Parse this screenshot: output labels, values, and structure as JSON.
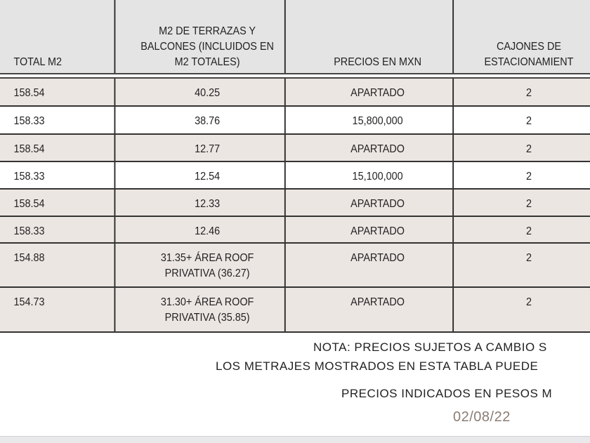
{
  "table": {
    "headers": [
      "TOTAL M2",
      "M2 DE TERRAZAS Y BALCONES (INCLUIDOS EN M2 TOTALES)",
      "PRECIOS EN MXN",
      "CAJONES DE ESTACIONAMIENT"
    ],
    "header_lines": {
      "col1": [
        "M2 DE TERRAZAS Y",
        "BALCONES (INCLUIDOS EN",
        "M2 TOTALES)"
      ],
      "col3": [
        "CAJONES DE",
        "ESTACIONAMIENT"
      ]
    },
    "rows": [
      {
        "total": "158.54",
        "terrazas": [
          "40.25"
        ],
        "precio": "APARTADO",
        "cajones": "2"
      },
      {
        "total": "158.33",
        "terrazas": [
          "38.76"
        ],
        "precio": "15,800,000",
        "cajones": "2"
      },
      {
        "total": "158.54",
        "terrazas": [
          "12.77"
        ],
        "precio": "APARTADO",
        "cajones": "2"
      },
      {
        "total": "158.33",
        "terrazas": [
          "12.54"
        ],
        "precio": "15,100,000",
        "cajones": "2"
      },
      {
        "total": "158.54",
        "terrazas": [
          "12.33"
        ],
        "precio": "APARTADO",
        "cajones": "2"
      },
      {
        "total": "158.33",
        "terrazas": [
          "12.46"
        ],
        "precio": "APARTADO",
        "cajones": "2"
      },
      {
        "total": "154.88",
        "terrazas": [
          "31.35+ ÁREA ROOF",
          "PRIVATIVA (36.27)"
        ],
        "precio": "APARTADO",
        "cajones": "2"
      },
      {
        "total": "154.73",
        "terrazas": [
          "31.30+ ÁREA ROOF",
          "PRIVATIVA (35.85)"
        ],
        "precio": "APARTADO",
        "cajones": "2"
      }
    ]
  },
  "notes": {
    "line1": "NOTA: PRECIOS SUJETOS A CAMBIO S",
    "line2": "LOS METRAJES MOSTRADOS EN ESTA TABLA PUEDE",
    "line3": "PRECIOS INDICADOS EN PESOS M",
    "date": "02/08/22"
  },
  "colors": {
    "header_bg": "#e4e4e4",
    "row_shade": "#ece6e3",
    "date_text": "#8a7d74"
  }
}
